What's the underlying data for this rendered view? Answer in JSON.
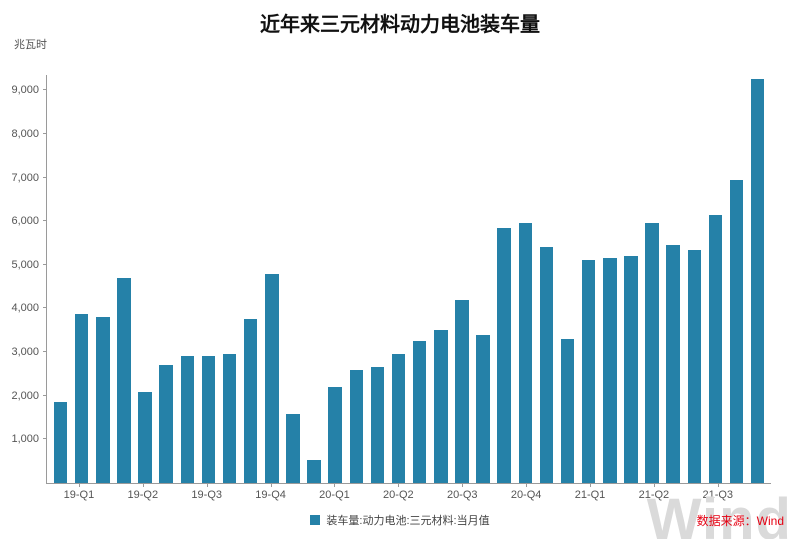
{
  "chart": {
    "title": "近年来三元材料动力电池装车量",
    "y_unit_label": "兆瓦时",
    "legend_label": "装车量:动力电池:三元材料:当月值",
    "accent_color": "#2581a8"
  },
  "footer": {
    "watermark": "Wind",
    "source": "数据来源：Wind",
    "source_color": "#e60012"
  },
  "chart_data": {
    "type": "bar",
    "title": "近年来三元材料动力电池装车量",
    "ylabel": "兆瓦时",
    "legend": [
      "装车量:动力电池:三元材料:当月值"
    ],
    "legend_position": "bottom-center",
    "grid": false,
    "bar_color": "#2581a8",
    "ylim": [
      0,
      9350
    ],
    "yticks": [
      1000,
      2000,
      3000,
      4000,
      5000,
      6000,
      7000,
      8000,
      9000
    ],
    "x_tick_labels": [
      "19-Q1",
      "19-Q2",
      "19-Q3",
      "19-Q4",
      "20-Q1",
      "20-Q2",
      "20-Q3",
      "20-Q4",
      "21-Q1",
      "21-Q2",
      "21-Q3"
    ],
    "months": [
      "2019-01",
      "2019-02",
      "2019-03",
      "2019-04",
      "2019-05",
      "2019-06",
      "2019-07",
      "2019-08",
      "2019-09",
      "2019-10",
      "2019-11",
      "2019-12",
      "2020-01",
      "2020-02",
      "2020-03",
      "2020-04",
      "2020-05",
      "2020-06",
      "2020-07",
      "2020-08",
      "2020-09",
      "2020-10",
      "2020-11",
      "2020-12",
      "2021-01",
      "2021-02",
      "2021-03",
      "2021-04",
      "2021-05",
      "2021-06",
      "2021-07",
      "2021-08",
      "2021-09",
      "2021-10"
    ],
    "values": [
      1850,
      3880,
      3800,
      4700,
      2080,
      2700,
      2900,
      2900,
      2950,
      3750,
      4800,
      1580,
      520,
      2200,
      2600,
      2650,
      2950,
      3250,
      3500,
      4200,
      3400,
      5850,
      5950,
      5400,
      3300,
      5100,
      5150,
      5200,
      5950,
      5450,
      5350,
      6150,
      6950,
      9250
    ]
  }
}
